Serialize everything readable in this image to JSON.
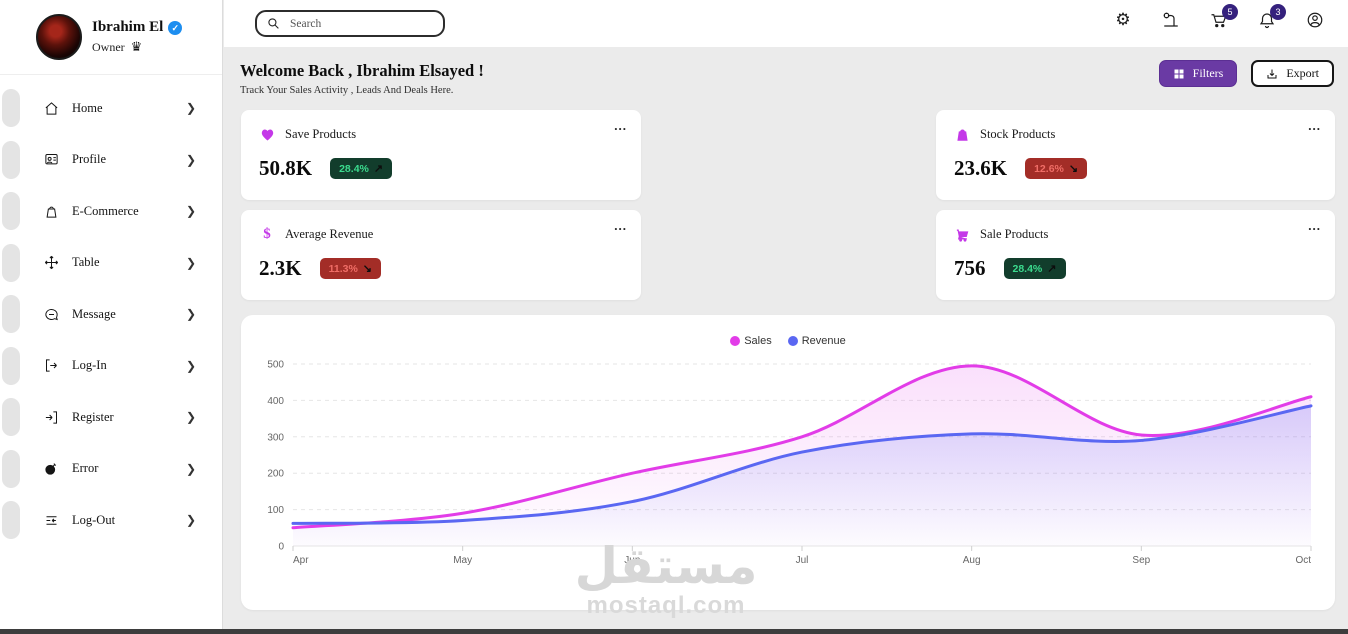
{
  "sidebar": {
    "user": {
      "name": "Ibrahim El",
      "role": "Owner",
      "verified": "✓",
      "crown": "♛"
    },
    "items": [
      {
        "label": "Home",
        "icon": "home-icon"
      },
      {
        "label": "Profile",
        "icon": "profile-icon"
      },
      {
        "label": "E-Commerce",
        "icon": "ecommerce-icon"
      },
      {
        "label": "Table",
        "icon": "table-icon"
      },
      {
        "label": "Message",
        "icon": "message-icon"
      },
      {
        "label": "Log-In",
        "icon": "login-icon"
      },
      {
        "label": "Register",
        "icon": "register-icon"
      },
      {
        "label": "Error",
        "icon": "error-icon"
      },
      {
        "label": "Log-Out",
        "icon": "logout-icon"
      }
    ],
    "chevron": "❯"
  },
  "topbar": {
    "search_placeholder": "Search",
    "cart_badge": "5",
    "notifications_badge": "3"
  },
  "header": {
    "title": "Welcome Back , Ibrahim Elsayed !",
    "subtitle": "Track Your Sales Activity , Leads And Deals Here.",
    "filters_label": "Filters",
    "export_label": "Export"
  },
  "stat_cards": [
    {
      "label": "Save Products",
      "value": "50.8K",
      "change": "28.4%",
      "trend": "up",
      "arrow": "↗",
      "icon": "heart-icon",
      "menu": "..."
    },
    {
      "label": "Stock Products",
      "value": "23.6K",
      "change": "12.6%",
      "trend": "down",
      "arrow": "↘",
      "icon": "bag-icon",
      "menu": "..."
    },
    {
      "label": "Average Revenue",
      "value": "2.3K",
      "change": "11.3%",
      "trend": "down",
      "arrow": "↘",
      "icon": "dollar-icon",
      "menu": "..."
    },
    {
      "label": "Sale Products",
      "value": "756",
      "change": "28.4%",
      "trend": "up",
      "arrow": "↗",
      "icon": "cart-icon",
      "menu": "..."
    }
  ],
  "chart_data": {
    "type": "line",
    "x": [
      "Apr",
      "May",
      "Jun",
      "Jul",
      "Aug",
      "Sep",
      "Oct"
    ],
    "series": [
      {
        "name": "Sales",
        "color": "#e23ce8",
        "fill_color": "#e23ce8",
        "values": [
          50,
          90,
          200,
          300,
          495,
          305,
          410
        ]
      },
      {
        "name": "Revenue",
        "color": "#5a67f2",
        "fill_color": "#5a67f2",
        "values": [
          62,
          70,
          122,
          258,
          308,
          290,
          385
        ]
      }
    ],
    "ylim": [
      0,
      500
    ],
    "yticks": [
      0,
      100,
      200,
      300,
      400,
      500
    ],
    "grid": true,
    "legend_position": "top",
    "smooth": true
  },
  "colors": {
    "accent_purple": "#6a3aa4",
    "badge_circle": "#35217d",
    "card_icon_magenta": "#c438e8",
    "trend_up_bg": "#123d2c",
    "trend_up_text": "#3bdb8e",
    "trend_down_bg": "#a32d27",
    "trend_down_text": "#ef6d66"
  },
  "watermark": {
    "text_ar": "مستقل",
    "text_en": "mostaql.com"
  }
}
